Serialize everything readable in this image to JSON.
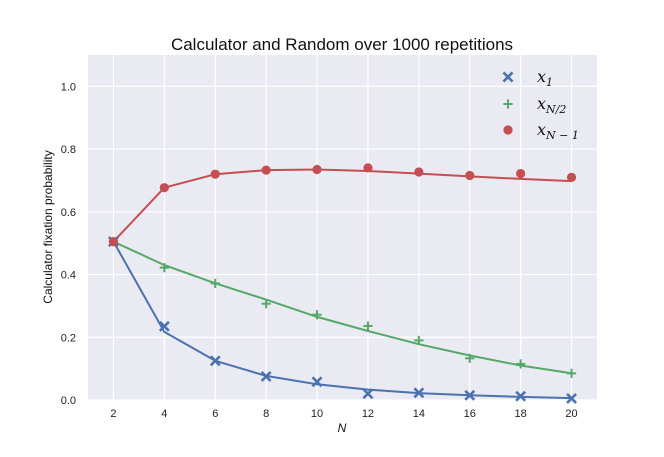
{
  "chart_data": {
    "type": "scatter",
    "title": "Calculator and Random over 1000 repetitions",
    "xlabel": "N",
    "ylabel": "Calculator fixation probability",
    "x": [
      2,
      4,
      6,
      8,
      10,
      12,
      14,
      16,
      18,
      20
    ],
    "xlim": [
      1,
      21
    ],
    "ylim": [
      0,
      1.1
    ],
    "xticks": [
      "2",
      "4",
      "6",
      "8",
      "10",
      "12",
      "14",
      "16",
      "18",
      "20"
    ],
    "yticks": [
      "0.0",
      "0.2",
      "0.4",
      "0.6",
      "0.8",
      "1.0"
    ],
    "grid": true,
    "legend_position": "top-right",
    "series": [
      {
        "name": "x_1",
        "legend_base": "x",
        "legend_sub": "1",
        "marker": "x",
        "color": "#4c72b0",
        "points": [
          0.505,
          0.235,
          0.125,
          0.075,
          0.058,
          0.02,
          0.023,
          0.015,
          0.012,
          0.005
        ],
        "line": [
          0.505,
          0.217,
          0.125,
          0.077,
          0.05,
          0.033,
          0.022,
          0.015,
          0.01,
          0.006
        ]
      },
      {
        "name": "x_{N/2}",
        "legend_base": "x",
        "legend_sub": "N/2",
        "marker": "+",
        "color": "#55a868",
        "points": [
          0.505,
          0.422,
          0.372,
          0.307,
          0.272,
          0.236,
          0.19,
          0.133,
          0.115,
          0.085
        ],
        "line": [
          0.505,
          0.43,
          0.372,
          0.32,
          0.265,
          0.22,
          0.178,
          0.142,
          0.11,
          0.085
        ]
      },
      {
        "name": "x_{N-1}",
        "legend_base": "x",
        "legend_sub": "N − 1",
        "marker": "o",
        "color": "#c44e52",
        "points": [
          0.505,
          0.677,
          0.72,
          0.733,
          0.735,
          0.74,
          0.727,
          0.716,
          0.722,
          0.71
        ],
        "line": [
          0.505,
          0.677,
          0.72,
          0.733,
          0.735,
          0.73,
          0.722,
          0.713,
          0.705,
          0.698
        ]
      }
    ]
  }
}
